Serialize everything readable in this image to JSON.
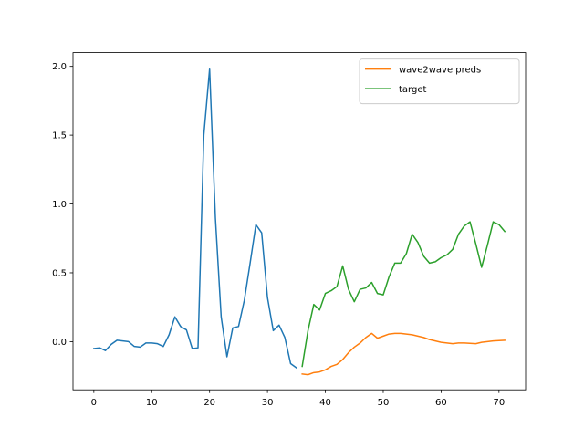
{
  "chart_data": {
    "type": "line",
    "title": "",
    "xlabel": "",
    "ylabel": "",
    "xlim": [
      -3.6,
      74.6
    ],
    "ylim": [
      -0.35,
      2.1
    ],
    "xticks": [
      0,
      10,
      20,
      30,
      40,
      50,
      60,
      70
    ],
    "yticks": [
      0.0,
      0.5,
      1.0,
      1.5,
      2.0
    ],
    "xtick_labels": [
      "0",
      "10",
      "20",
      "30",
      "40",
      "50",
      "60",
      "70"
    ],
    "ytick_labels": [
      "0.0",
      "0.5",
      "1.0",
      "1.5",
      "2.0"
    ],
    "grid": false,
    "legend_position": "upper right",
    "series": [
      {
        "name": "",
        "color": "#1f77b4",
        "x": [
          0,
          1,
          2,
          3,
          4,
          5,
          6,
          7,
          8,
          9,
          10,
          11,
          12,
          13,
          14,
          15,
          16,
          17,
          18,
          19,
          20,
          21,
          22,
          23,
          24,
          25,
          26,
          27,
          28,
          29,
          30,
          31,
          32,
          33,
          34,
          35
        ],
        "y": [
          -0.05,
          -0.045,
          -0.065,
          -0.02,
          0.01,
          0.005,
          0.0,
          -0.035,
          -0.04,
          -0.01,
          -0.01,
          -0.015,
          -0.035,
          0.05,
          0.18,
          0.11,
          0.085,
          -0.05,
          -0.045,
          1.5,
          1.98,
          0.9,
          0.18,
          -0.11,
          0.1,
          0.11,
          0.3,
          0.57,
          0.85,
          0.79,
          0.32,
          0.08,
          0.12,
          0.03,
          -0.16,
          -0.19
        ]
      },
      {
        "name": "wave2wave preds",
        "color": "#ff7f0e",
        "x": [
          36,
          37,
          38,
          39,
          40,
          41,
          42,
          43,
          44,
          45,
          46,
          47,
          48,
          49,
          50,
          51,
          52,
          53,
          54,
          55,
          56,
          57,
          58,
          59,
          60,
          61,
          62,
          63,
          64,
          65,
          66,
          67,
          68,
          69,
          70,
          71
        ],
        "y": [
          -0.235,
          -0.24,
          -0.225,
          -0.22,
          -0.205,
          -0.18,
          -0.165,
          -0.13,
          -0.08,
          -0.04,
          -0.01,
          0.03,
          0.06,
          0.025,
          0.04,
          0.055,
          0.06,
          0.06,
          0.055,
          0.05,
          0.04,
          0.03,
          0.015,
          0.005,
          -0.005,
          -0.01,
          -0.015,
          -0.01,
          -0.01,
          -0.012,
          -0.015,
          -0.005,
          0.0,
          0.005,
          0.008,
          0.01
        ]
      },
      {
        "name": "target",
        "color": "#2ca02c",
        "x": [
          36,
          37,
          38,
          39,
          40,
          41,
          42,
          43,
          44,
          45,
          46,
          47,
          48,
          49,
          50,
          51,
          52,
          53,
          54,
          55,
          56,
          57,
          58,
          59,
          60,
          61,
          62,
          63,
          64,
          65,
          66,
          67,
          68,
          69,
          70,
          71
        ],
        "y": [
          -0.18,
          0.08,
          0.27,
          0.23,
          0.35,
          0.37,
          0.4,
          0.55,
          0.38,
          0.29,
          0.38,
          0.39,
          0.43,
          0.35,
          0.34,
          0.47,
          0.57,
          0.57,
          0.64,
          0.78,
          0.72,
          0.62,
          0.57,
          0.58,
          0.61,
          0.63,
          0.67,
          0.78,
          0.84,
          0.87,
          0.71,
          0.54,
          0.7,
          0.87,
          0.85,
          0.8
        ]
      }
    ]
  }
}
